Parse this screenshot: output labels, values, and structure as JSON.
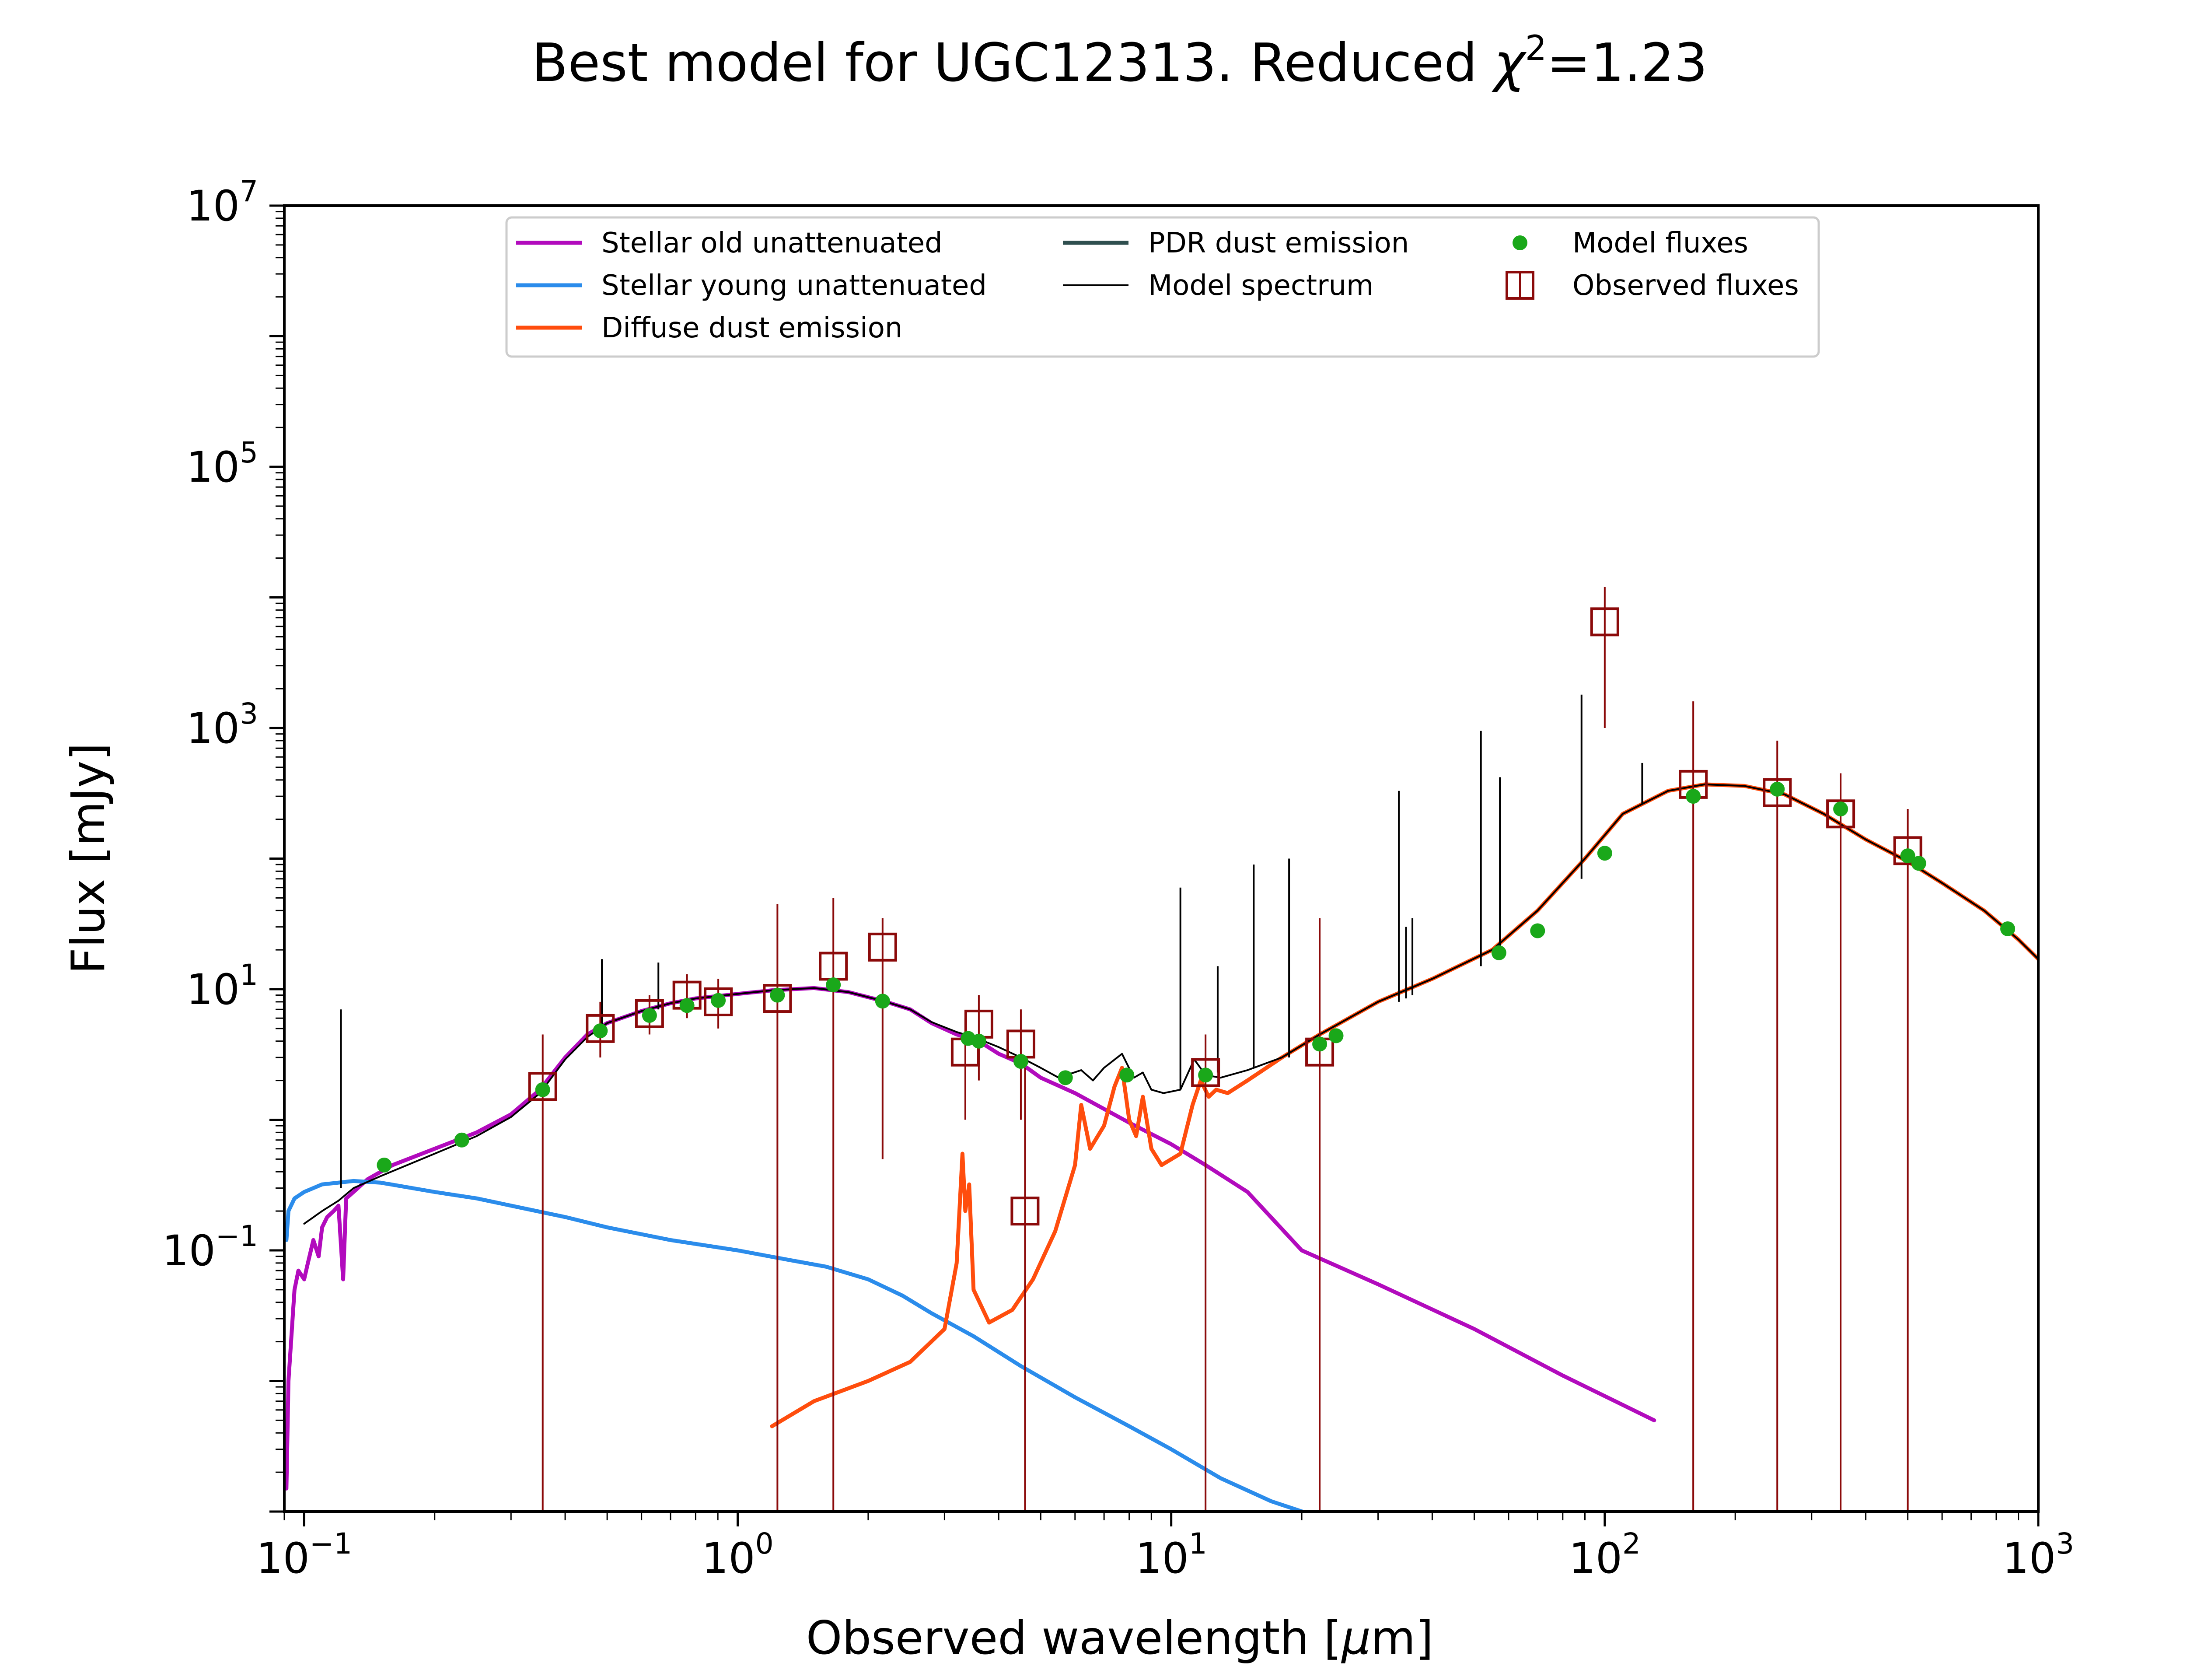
{
  "title_main": "Best model for UGC12313. Reduced ",
  "title_chi": "χ",
  "title_chi_exp": "2",
  "title_value": "=1.23",
  "chart_data": {
    "type": "line",
    "title": "Best model for UGC12313. Reduced χ²=1.23",
    "xlabel": "Observed wavelength [μm]",
    "xlabel_parts": [
      "Observed wavelength [",
      "μ",
      "m]"
    ],
    "ylabel": "Flux [mJy]",
    "xscale": "log",
    "yscale": "log",
    "xlim": [
      0.09,
      1000
    ],
    "ylim": [
      0.001,
      10000000
    ],
    "grid": false,
    "legend_location": "top-center",
    "x_ticks": [
      {
        "base": "10",
        "exp": "−1",
        "value": 0.1
      },
      {
        "base": "10",
        "exp": "0",
        "value": 1
      },
      {
        "base": "10",
        "exp": "1",
        "value": 10
      },
      {
        "base": "10",
        "exp": "2",
        "value": 100
      },
      {
        "base": "10",
        "exp": "3",
        "value": 1000
      }
    ],
    "y_ticks": [
      {
        "base": "10",
        "exp": "−1",
        "value": 0.1
      },
      {
        "base": "10",
        "exp": "1",
        "value": 10
      },
      {
        "base": "10",
        "exp": "3",
        "value": 1000
      },
      {
        "base": "10",
        "exp": "5",
        "value": 100000
      },
      {
        "base": "10",
        "exp": "7",
        "value": 10000000
      }
    ],
    "legend": [
      {
        "label": "Stellar old unattenuated",
        "kind": "line",
        "color": "#b20bbd"
      },
      {
        "label": "Stellar young unattenuated",
        "kind": "line",
        "color": "#2b8ceb"
      },
      {
        "label": "Diffuse dust emission",
        "kind": "line",
        "color": "#ff4d0d"
      },
      {
        "label": "PDR dust emission",
        "kind": "line",
        "color": "#2f4f4f"
      },
      {
        "label": "Model spectrum",
        "kind": "thinline",
        "color": "#000000"
      },
      {
        "label": "Model fluxes",
        "kind": "dot",
        "color": "#1aa81a"
      },
      {
        "label": "Observed fluxes",
        "kind": "square",
        "color": "#8b0a0a"
      }
    ],
    "series": [
      {
        "name": "Stellar old unattenuated",
        "color": "#b20bbd",
        "x": [
          0.091,
          0.092,
          0.095,
          0.097,
          0.1,
          0.102,
          0.105,
          0.108,
          0.11,
          0.113,
          0.117,
          0.12,
          0.123,
          0.125,
          0.13,
          0.14,
          0.16,
          0.2,
          0.25,
          0.3,
          0.35,
          0.4,
          0.45,
          0.5,
          0.6,
          0.7,
          0.8,
          1.0,
          1.2,
          1.5,
          1.8,
          2.2,
          2.5,
          2.8,
          3.2,
          3.6,
          4.0,
          4.5,
          5.0,
          6.0,
          8.0,
          10.0,
          12.0,
          15.0,
          20.0,
          30.0,
          50.0,
          80.0,
          130.0
        ],
        "y": [
          0.0015,
          0.01,
          0.05,
          0.07,
          0.06,
          0.08,
          0.12,
          0.09,
          0.15,
          0.18,
          0.2,
          0.22,
          0.06,
          0.25,
          0.28,
          0.35,
          0.45,
          0.6,
          0.8,
          1.1,
          1.7,
          3.0,
          4.5,
          5.5,
          6.8,
          7.8,
          8.5,
          9.2,
          9.8,
          10.2,
          9.5,
          8.0,
          7.0,
          5.5,
          4.5,
          4.0,
          3.2,
          2.7,
          2.1,
          1.6,
          0.95,
          0.65,
          0.45,
          0.28,
          0.1,
          0.055,
          0.025,
          0.011,
          0.005
        ]
      },
      {
        "name": "Stellar young unattenuated",
        "color": "#2b8ceb",
        "x": [
          0.091,
          0.092,
          0.095,
          0.1,
          0.105,
          0.11,
          0.12,
          0.13,
          0.15,
          0.2,
          0.25,
          0.3,
          0.4,
          0.5,
          0.7,
          1.0,
          1.3,
          1.6,
          2.0,
          2.4,
          2.8,
          3.5,
          4.5,
          6.0,
          8.0,
          10.0,
          13.0,
          17.0,
          21.0
        ],
        "y": [
          0.12,
          0.2,
          0.25,
          0.28,
          0.3,
          0.32,
          0.33,
          0.34,
          0.33,
          0.28,
          0.25,
          0.22,
          0.18,
          0.15,
          0.12,
          0.1,
          0.085,
          0.075,
          0.06,
          0.045,
          0.033,
          0.022,
          0.013,
          0.0075,
          0.0045,
          0.003,
          0.0018,
          0.0012,
          0.00095
        ]
      },
      {
        "name": "Diffuse dust emission",
        "color": "#ff4d0d",
        "x": [
          1.2,
          1.5,
          2.0,
          2.5,
          3.0,
          3.2,
          3.3,
          3.35,
          3.42,
          3.5,
          3.8,
          4.3,
          4.8,
          5.4,
          6.0,
          6.2,
          6.5,
          7.0,
          7.4,
          7.7,
          8.0,
          8.3,
          8.6,
          9.0,
          9.5,
          10.5,
          11.2,
          11.7,
          12.2,
          12.7,
          13.5,
          15.0,
          18.0,
          22.0,
          30.0,
          40.0,
          55.0,
          70.0,
          90.0,
          110.0,
          140.0,
          170.0,
          210.0,
          260.0,
          320.0,
          400.0,
          500.0,
          600.0,
          750.0,
          900.0,
          1000.0
        ],
        "y": [
          0.0045,
          0.007,
          0.01,
          0.014,
          0.025,
          0.08,
          0.55,
          0.2,
          0.32,
          0.05,
          0.028,
          0.035,
          0.06,
          0.14,
          0.45,
          1.3,
          0.6,
          0.9,
          1.8,
          2.5,
          1.0,
          0.75,
          1.5,
          0.6,
          0.45,
          0.55,
          1.3,
          2.0,
          1.5,
          1.7,
          1.6,
          2.0,
          3.0,
          4.5,
          8.0,
          12.0,
          20.0,
          40.0,
          100.0,
          220.0,
          330.0,
          370.0,
          360.0,
          310.0,
          220.0,
          140.0,
          95.0,
          65.0,
          40.0,
          24.0,
          17.0
        ]
      },
      {
        "name": "Model spectrum",
        "color": "#000000",
        "x": [
          0.1,
          0.11,
          0.12,
          0.13,
          0.15,
          0.2,
          0.25,
          0.3,
          0.35,
          0.4,
          0.45,
          0.5,
          0.6,
          0.7,
          0.8,
          1.0,
          1.2,
          1.5,
          1.8,
          2.2,
          2.5,
          2.8,
          3.2,
          3.5,
          4.0,
          4.5,
          5.0,
          5.5,
          6.2,
          6.6,
          7.0,
          7.7,
          8.2,
          8.6,
          9.0,
          9.6,
          10.5,
          11.3,
          12.0,
          13.0,
          15.0,
          18.0,
          22.0,
          30.0,
          40.0,
          55.0,
          70.0,
          90.0,
          110.0,
          140.0,
          170.0,
          210.0,
          260.0,
          320.0,
          400.0,
          500.0,
          600.0,
          750.0,
          900.0,
          1000.0
        ],
        "y": [
          0.16,
          0.2,
          0.24,
          0.3,
          0.37,
          0.55,
          0.75,
          1.05,
          1.6,
          2.9,
          4.3,
          5.5,
          6.8,
          7.8,
          8.5,
          9.2,
          9.8,
          10.2,
          9.5,
          8.0,
          7.0,
          5.6,
          4.7,
          4.3,
          3.6,
          3.0,
          2.5,
          2.1,
          2.4,
          2.0,
          2.5,
          3.2,
          2.1,
          2.3,
          1.7,
          1.6,
          1.7,
          2.9,
          2.2,
          2.1,
          2.4,
          3.0,
          4.5,
          8.0,
          12.0,
          20.0,
          40.0,
          100.0,
          220.0,
          330.0,
          370.0,
          360.0,
          310.0,
          220.0,
          140.0,
          95.0,
          65.0,
          40.0,
          24.0,
          17.0
        ]
      }
    ],
    "emission_lines": {
      "name": "Model spectrum",
      "color": "#000000",
      "lines": [
        {
          "x": 0.1216,
          "ymin": 0.3,
          "ymax": 7.0
        },
        {
          "x": 0.4861,
          "ymin": 5.0,
          "ymax": 17.0
        },
        {
          "x": 0.6563,
          "ymin": 7.0,
          "ymax": 16.0
        },
        {
          "x": 10.5,
          "ymin": 1.7,
          "ymax": 60.0
        },
        {
          "x": 12.8,
          "ymin": 2.3,
          "ymax": 15.0
        },
        {
          "x": 15.5,
          "ymin": 2.5,
          "ymax": 90.0
        },
        {
          "x": 18.7,
          "ymin": 3.0,
          "ymax": 100.0
        },
        {
          "x": 33.5,
          "ymin": 8.0,
          "ymax": 330.0
        },
        {
          "x": 34.8,
          "ymin": 8.5,
          "ymax": 30.0
        },
        {
          "x": 36.0,
          "ymin": 9.0,
          "ymax": 35.0
        },
        {
          "x": 51.8,
          "ymin": 15.0,
          "ymax": 950.0
        },
        {
          "x": 57.3,
          "ymin": 18.0,
          "ymax": 420.0
        },
        {
          "x": 88.4,
          "ymin": 70.0,
          "ymax": 1800.0
        },
        {
          "x": 122.0,
          "ymin": 260.0,
          "ymax": 540.0
        }
      ]
    },
    "model_fluxes": {
      "name": "Model fluxes",
      "color": "#1aa81a",
      "x": [
        0.153,
        0.231,
        0.355,
        0.482,
        0.626,
        0.764,
        0.902,
        1.235,
        1.662,
        2.159,
        3.4,
        3.6,
        4.5,
        5.7,
        7.9,
        12.0,
        22.0,
        24.0,
        57.0,
        70.0,
        100.0,
        160.0,
        250.0,
        350.0,
        500.0,
        530.0,
        850.0
      ],
      "y": [
        0.45,
        0.7,
        1.7,
        4.8,
        6.3,
        7.5,
        8.2,
        9.0,
        10.8,
        8.1,
        4.2,
        4.0,
        2.8,
        2.1,
        2.2,
        2.2,
        3.8,
        4.4,
        19.0,
        28.0,
        110.0,
        300.0,
        340.0,
        240.0,
        105.0,
        92.0,
        29.0
      ]
    },
    "observed_fluxes": {
      "name": "Observed fluxes",
      "color": "#8b0a0a",
      "points": [
        {
          "x": 0.355,
          "y": 1.8,
          "err_lo": 0.001,
          "err_hi": 4.5
        },
        {
          "x": 0.482,
          "y": 5.0,
          "err_lo": 3.0,
          "err_hi": 8.0
        },
        {
          "x": 0.626,
          "y": 6.5,
          "err_lo": 4.5,
          "err_hi": 9.0
        },
        {
          "x": 0.764,
          "y": 9.0,
          "err_lo": 6.0,
          "err_hi": 13.0
        },
        {
          "x": 0.902,
          "y": 8.0,
          "err_lo": 5.0,
          "err_hi": 12.0
        },
        {
          "x": 1.235,
          "y": 8.5,
          "err_lo": 0.001,
          "err_hi": 45.0
        },
        {
          "x": 1.662,
          "y": 15.0,
          "err_lo": 0.001,
          "err_hi": 50.0
        },
        {
          "x": 2.159,
          "y": 21.0,
          "err_lo": 0.5,
          "err_hi": 35.0
        },
        {
          "x": 3.35,
          "y": 3.3,
          "err_lo": 1.0,
          "err_hi": 6.0
        },
        {
          "x": 3.6,
          "y": 5.4,
          "err_lo": 2.0,
          "err_hi": 9.0
        },
        {
          "x": 4.5,
          "y": 3.8,
          "err_lo": 1.0,
          "err_hi": 7.0
        },
        {
          "x": 4.6,
          "y": 0.2,
          "err_lo": 0.001,
          "err_hi": 2.5
        },
        {
          "x": 12.0,
          "y": 2.3,
          "err_lo": 0.001,
          "err_hi": 4.5
        },
        {
          "x": 22.0,
          "y": 3.3,
          "err_lo": 0.001,
          "err_hi": 35.0
        },
        {
          "x": 100.0,
          "y": 6500.0,
          "err_lo": 1000.0,
          "err_hi": 12000.0
        },
        {
          "x": 160.0,
          "y": 370.0,
          "err_lo": 0.001,
          "err_hi": 1600.0
        },
        {
          "x": 250.0,
          "y": 320.0,
          "err_lo": 0.001,
          "err_hi": 800.0
        },
        {
          "x": 350.0,
          "y": 220.0,
          "err_lo": 0.001,
          "err_hi": 450.0
        },
        {
          "x": 500.0,
          "y": 115.0,
          "err_lo": 0.001,
          "err_hi": 240.0
        }
      ]
    }
  }
}
